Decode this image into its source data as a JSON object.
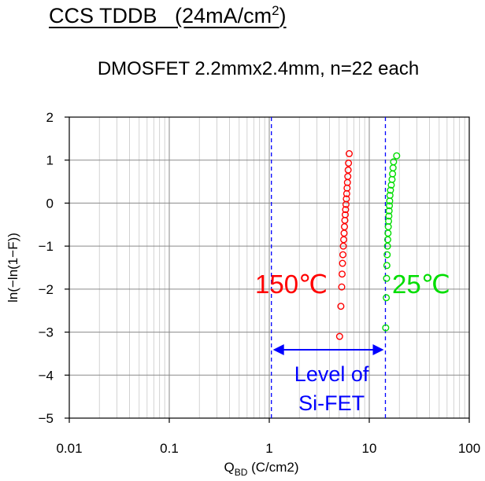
{
  "slide": {
    "title_main": "CCS TDDB",
    "title_condition_prefix": "(24mA/cm",
    "title_condition_sup": "2",
    "title_condition_suffix": ")"
  },
  "chart_data": {
    "type": "scatter",
    "title": "DMOSFET 2.2mmx2.4mm, n=22 each",
    "xlabel_main": "Q",
    "xlabel_sub": "BD",
    "xlabel_unit": " (C/cm2)",
    "ylabel": "ln(−ln(1−F))",
    "x_scale": "log",
    "xlim": [
      0.01,
      100
    ],
    "ylim": [
      -5,
      2
    ],
    "x_ticks": [
      0.01,
      0.1,
      1,
      10,
      100
    ],
    "x_tick_labels": [
      "0.01",
      "0.1",
      "1",
      "10",
      "100"
    ],
    "y_ticks": [
      -5,
      -4,
      -3,
      -2,
      -1,
      0,
      1,
      2
    ],
    "y_tick_labels": [
      "−5",
      "−4",
      "−3",
      "−2",
      "−1",
      "0",
      "1",
      "2"
    ],
    "grid": true,
    "series": [
      {
        "name": "150℃",
        "color": "#ff0000",
        "marker": "open-circle",
        "x": [
          5.05,
          5.2,
          5.3,
          5.35,
          5.4,
          5.45,
          5.5,
          5.55,
          5.6,
          5.65,
          5.7,
          5.75,
          5.8,
          5.85,
          5.9,
          5.95,
          6.0,
          6.05,
          6.1,
          6.15,
          6.2,
          6.3
        ],
        "y": [
          -3.1,
          -2.4,
          -1.95,
          -1.65,
          -1.4,
          -1.2,
          -1.0,
          -0.85,
          -0.7,
          -0.55,
          -0.4,
          -0.27,
          -0.15,
          -0.03,
          0.1,
          0.22,
          0.35,
          0.48,
          0.62,
          0.77,
          0.93,
          1.15
        ]
      },
      {
        "name": "25℃",
        "color": "#00dd00",
        "marker": "open-circle",
        "x": [
          14.6,
          14.8,
          14.9,
          15.0,
          15.1,
          15.2,
          15.3,
          15.4,
          15.5,
          15.6,
          15.7,
          15.8,
          15.9,
          16.0,
          16.1,
          16.3,
          16.6,
          16.9,
          17.1,
          17.3,
          17.5,
          18.8
        ],
        "y": [
          -2.9,
          -2.2,
          -1.75,
          -1.45,
          -1.2,
          -1.0,
          -0.85,
          -0.7,
          -0.55,
          -0.42,
          -0.3,
          -0.18,
          -0.06,
          0.05,
          0.18,
          0.3,
          0.42,
          0.55,
          0.68,
          0.82,
          0.96,
          1.1
        ]
      }
    ],
    "annotations": {
      "series_labels": [
        {
          "text": "150℃",
          "color": "#ff0000"
        },
        {
          "text": "25℃",
          "color": "#00dd00"
        }
      ],
      "reference_lines": {
        "x": [
          1.05,
          14.5
        ],
        "color": "#0000ff",
        "style": "dashed"
      },
      "range_label_line1": "Level of",
      "range_label_line2": "Si-FET",
      "range_label_color": "#0000ff"
    }
  }
}
